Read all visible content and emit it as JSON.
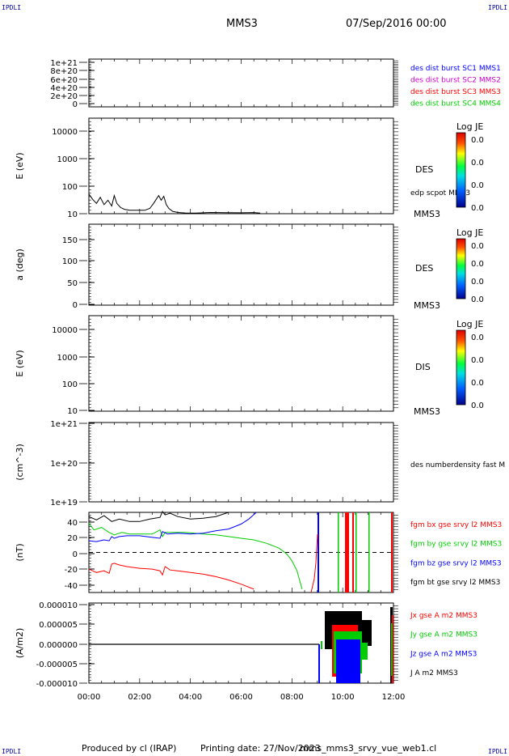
{
  "corner_tag": "IPDLI",
  "header": {
    "spacecraft": "MMS3",
    "date": "07/Sep/2016 00:00"
  },
  "footer": {
    "produced": "Produced by cl (IRAP)",
    "printing": "Printing date: 27/Nov/2023",
    "file": "mms_mms3_srvy_vue_web1.cl"
  },
  "colors": {
    "black": "#000000",
    "red": "#ff0000",
    "green": "#00cc00",
    "blue": "#0000ff",
    "magenta": "#cc00cc"
  },
  "colorbar": {
    "title": "Log JE",
    "ticks": [
      "0.0",
      "0.0",
      "0.0",
      "0.0"
    ]
  },
  "time_axis": {
    "ticks": [
      "00:00",
      "02:00",
      "04:00",
      "06:00",
      "08:00",
      "10:00",
      "12:00"
    ],
    "range_hours": [
      0,
      12
    ]
  },
  "chart_data": [
    {
      "type": "line",
      "ylabel": "",
      "yticks": [
        "1e+21",
        "8e+20",
        "6e+20",
        "4e+20",
        "2e+20",
        "0"
      ],
      "ylim": [
        0,
        1.1e+21
      ],
      "legend": [
        {
          "text": "des dist burst SC1 MMS1",
          "color": "blue"
        },
        {
          "text": "des dist burst SC2 MMS2",
          "color": "magenta"
        },
        {
          "text": "des dist burst SC3 MMS3",
          "color": "red"
        },
        {
          "text": "des dist burst SC4 MMS4",
          "color": "green"
        }
      ],
      "zero_line": "dashed",
      "series": []
    },
    {
      "type": "line",
      "ylabel": "E (eV)",
      "scale": "log",
      "yticks": [
        "10000",
        "1000",
        "100",
        "10"
      ],
      "ylim": [
        10,
        15000
      ],
      "side_label": "DES",
      "bottom_label": "MMS3",
      "colorbar": true,
      "legend": [
        {
          "text": "edp scpot MMS3",
          "color": "black"
        }
      ],
      "series": [
        {
          "name": "edp scpot MMS3",
          "x": [
            0.0,
            0.15,
            0.3,
            0.45,
            0.6,
            0.75,
            0.9,
            1.0,
            1.1,
            1.25,
            1.4,
            1.6,
            1.8,
            2.0,
            2.2,
            2.4,
            2.55,
            2.65,
            2.75,
            2.85,
            2.95,
            3.05,
            3.15,
            3.3,
            3.5,
            3.8,
            4.2,
            4.8,
            5.4,
            6.0,
            6.5,
            6.75
          ],
          "y": [
            45,
            30,
            22,
            35,
            20,
            28,
            18,
            40,
            22,
            16,
            14,
            13,
            13,
            13,
            13,
            15,
            22,
            30,
            40,
            28,
            38,
            20,
            15,
            12,
            11,
            10.6,
            10.5,
            11,
            10.8,
            10.7,
            10.9,
            10.5
          ]
        }
      ]
    },
    {
      "type": "heatmap",
      "ylabel": "a (deg)",
      "yticks": [
        "150",
        "100",
        "50",
        "0"
      ],
      "ylim": [
        0,
        180
      ],
      "side_label": "DES",
      "bottom_label": "MMS3",
      "colorbar": true,
      "series": []
    },
    {
      "type": "heatmap",
      "ylabel": "E (eV)",
      "scale": "log",
      "yticks": [
        "10000",
        "1000",
        "100",
        "10"
      ],
      "ylim": [
        10,
        15000
      ],
      "side_label": "DIS",
      "bottom_label": "MMS3",
      "colorbar": true,
      "series": []
    },
    {
      "type": "line",
      "ylabel": "(cm^-3)",
      "scale": "log",
      "yticks": [
        "1e+21",
        "1e+20",
        "1e+19"
      ],
      "ylim": [
        1e+19,
        1e+21
      ],
      "legend": [
        {
          "text": "des numberdensity fast M",
          "color": "black"
        }
      ],
      "series": []
    },
    {
      "type": "line",
      "ylabel": "(nT)",
      "yticks": [
        "40",
        "20",
        "0",
        "-20",
        "-40"
      ],
      "ylim": [
        -48,
        48
      ],
      "zero_line": "dashed",
      "legend": [
        {
          "text": "fgm bx gse srvy l2 MMS3",
          "color": "red"
        },
        {
          "text": "fgm by gse srvy l2 MMS3",
          "color": "green"
        },
        {
          "text": "fgm bz gse srvy l2 MMS3",
          "color": "blue"
        },
        {
          "text": "fgm bt gse srvy l2 MMS3",
          "color": "black"
        }
      ],
      "series": [
        {
          "name": "fgm bx gse srvy l2 MMS3",
          "color": "red",
          "x": [
            0.0,
            0.3,
            0.6,
            0.8,
            0.9,
            1.0,
            1.2,
            1.5,
            2.0,
            2.5,
            2.8,
            2.9,
            3.0,
            3.2,
            3.5,
            4.0,
            4.5,
            5.0,
            5.5,
            6.0,
            6.5
          ],
          "y": [
            -20,
            -24,
            -22,
            -25,
            -14,
            -13,
            -15,
            -17,
            -19,
            -20,
            -22,
            -27,
            -17,
            -21,
            -22,
            -24,
            -26,
            -29,
            -33,
            -38,
            -44
          ]
        },
        {
          "name": "fgm by gse srvy l2 MMS3",
          "color": "green",
          "x": [
            0.0,
            0.2,
            0.5,
            0.8,
            1.0,
            1.3,
            1.6,
            2.0,
            2.5,
            2.8,
            2.9,
            3.0,
            3.3,
            3.8,
            4.5,
            5.0,
            5.5,
            6.0,
            6.5,
            7.0,
            7.5,
            7.8,
            8.0,
            8.2,
            8.4
          ],
          "y": [
            35,
            27,
            30,
            24,
            21,
            24,
            22,
            22,
            22,
            27,
            19,
            24,
            24,
            24,
            22,
            21,
            19,
            17,
            15,
            11,
            5,
            -2,
            -10,
            -22,
            -44
          ]
        },
        {
          "name": "fgm bz gse srvy l2 MMS3",
          "color": "blue",
          "x": [
            0.0,
            0.3,
            0.6,
            0.8,
            0.9,
            1.0,
            1.2,
            1.5,
            2.0,
            2.5,
            2.8,
            2.9,
            3.1,
            3.5,
            4.0,
            4.5,
            5.0,
            5.5,
            6.0,
            6.3,
            6.6
          ],
          "y": [
            14,
            13,
            15,
            14,
            19,
            17,
            19,
            20,
            20,
            18,
            17,
            25,
            22,
            23,
            22,
            23,
            26,
            28,
            34,
            40,
            48
          ]
        },
        {
          "name": "fgm bt gse srvy l2 MMS3",
          "color": "black",
          "x": [
            0.0,
            0.3,
            0.6,
            0.9,
            1.2,
            1.6,
            2.0,
            2.4,
            2.8,
            2.9,
            3.0,
            3.2,
            3.5,
            4.0,
            4.5,
            5.0,
            5.5
          ],
          "y": [
            43,
            39,
            44,
            37,
            40,
            37,
            37,
            40,
            42,
            49,
            45,
            47,
            43,
            40,
            41,
            43,
            48
          ]
        }
      ]
    },
    {
      "type": "line",
      "ylabel": "(A/m2)",
      "yticks": [
        "0.000010",
        "0.000005",
        "0.000000",
        "-0.000005",
        "-0.000010"
      ],
      "ylim": [
        -1e-05,
        1e-05
      ],
      "legend": [
        {
          "text": "Jx gse A m2 MMS3",
          "color": "red"
        },
        {
          "text": "Jy gse A m2 MMS3",
          "color": "green"
        },
        {
          "text": "Jz gse A m2 MMS3",
          "color": "blue"
        },
        {
          "text": "J A m2 MMS3",
          "color": "black"
        }
      ],
      "series": []
    }
  ]
}
